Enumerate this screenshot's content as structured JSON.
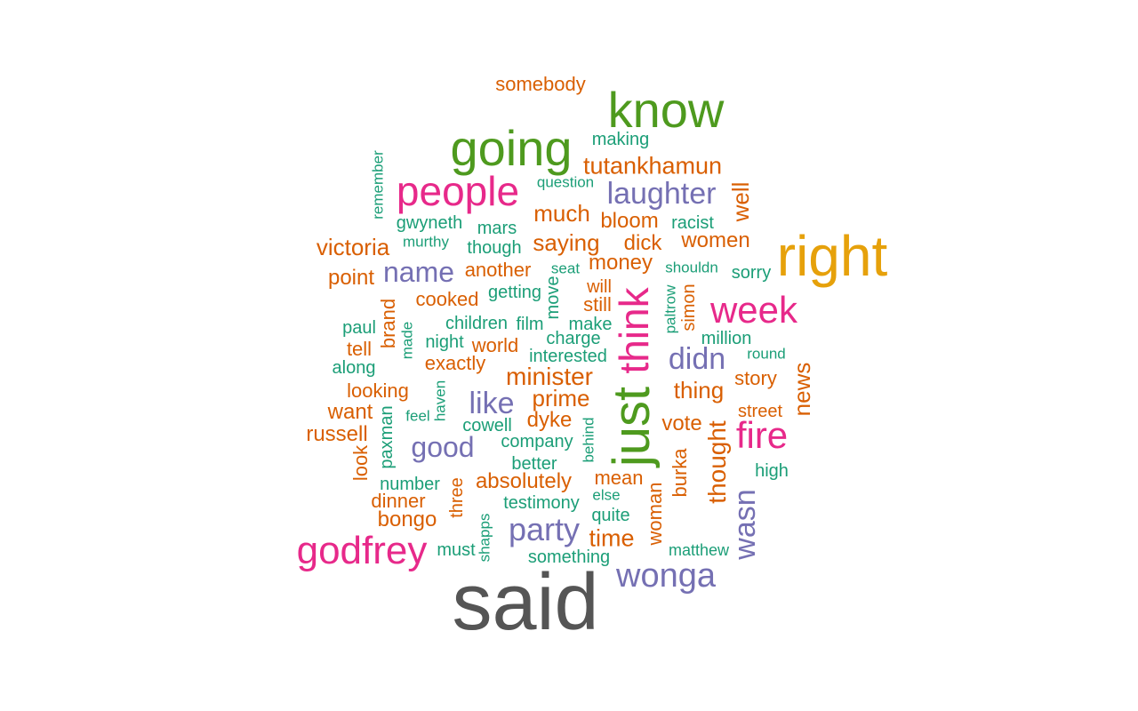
{
  "palette": {
    "gray": "#555555",
    "orange": "#d95f02",
    "green": "#1b9e77",
    "purple": "#7570b3",
    "magenta": "#e7298a",
    "lime": "#4e9a1e",
    "gold": "#e6a10b"
  },
  "words": [
    {
      "text": "said",
      "size": 90,
      "color": "gray"
    },
    {
      "text": "right",
      "size": 64,
      "color": "gold"
    },
    {
      "text": "just",
      "size": 58,
      "color": "lime"
    },
    {
      "text": "know",
      "size": 56,
      "color": "lime"
    },
    {
      "text": "going",
      "size": 56,
      "color": "lime"
    },
    {
      "text": "think",
      "size": 46,
      "color": "magenta"
    },
    {
      "text": "people",
      "size": 46,
      "color": "magenta"
    },
    {
      "text": "godfrey",
      "size": 44,
      "color": "magenta"
    },
    {
      "text": "week",
      "size": 42,
      "color": "magenta"
    },
    {
      "text": "fire",
      "size": 42,
      "color": "magenta"
    },
    {
      "text": "wonga",
      "size": 38,
      "color": "purple"
    },
    {
      "text": "party",
      "size": 36,
      "color": "purple"
    },
    {
      "text": "laughter",
      "size": 34,
      "color": "purple"
    },
    {
      "text": "didn",
      "size": 34,
      "color": "purple"
    },
    {
      "text": "like",
      "size": 34,
      "color": "purple"
    },
    {
      "text": "name",
      "size": 32,
      "color": "purple"
    },
    {
      "text": "good",
      "size": 32,
      "color": "purple"
    },
    {
      "text": "wasn",
      "size": 34,
      "color": "purple"
    },
    {
      "text": "minister",
      "size": 28,
      "color": "orange"
    },
    {
      "text": "thought",
      "size": 28,
      "color": "orange"
    },
    {
      "text": "tutankhamun",
      "size": 27,
      "color": "orange"
    },
    {
      "text": "time",
      "size": 27,
      "color": "orange"
    },
    {
      "text": "victoria",
      "size": 26,
      "color": "orange"
    },
    {
      "text": "saying",
      "size": 26,
      "color": "orange"
    },
    {
      "text": "much",
      "size": 26,
      "color": "orange"
    },
    {
      "text": "prime",
      "size": 26,
      "color": "orange"
    },
    {
      "text": "thing",
      "size": 26,
      "color": "orange"
    },
    {
      "text": "news",
      "size": 26,
      "color": "orange"
    },
    {
      "text": "well",
      "size": 26,
      "color": "orange"
    },
    {
      "text": "bloom",
      "size": 24,
      "color": "orange"
    },
    {
      "text": "dick",
      "size": 24,
      "color": "orange"
    },
    {
      "text": "women",
      "size": 24,
      "color": "orange"
    },
    {
      "text": "money",
      "size": 24,
      "color": "orange"
    },
    {
      "text": "dyke",
      "size": 24,
      "color": "orange"
    },
    {
      "text": "vote",
      "size": 24,
      "color": "orange"
    },
    {
      "text": "absolutely",
      "size": 24,
      "color": "orange"
    },
    {
      "text": "bongo",
      "size": 24,
      "color": "orange"
    },
    {
      "text": "want",
      "size": 24,
      "color": "orange"
    },
    {
      "text": "russell",
      "size": 24,
      "color": "orange"
    },
    {
      "text": "point",
      "size": 24,
      "color": "orange"
    },
    {
      "text": "somebody",
      "size": 22,
      "color": "orange"
    },
    {
      "text": "another",
      "size": 22,
      "color": "orange"
    },
    {
      "text": "cooked",
      "size": 22,
      "color": "orange"
    },
    {
      "text": "exactly",
      "size": 22,
      "color": "orange"
    },
    {
      "text": "world",
      "size": 22,
      "color": "orange"
    },
    {
      "text": "still",
      "size": 22,
      "color": "orange"
    },
    {
      "text": "will",
      "size": 20,
      "color": "orange"
    },
    {
      "text": "story",
      "size": 22,
      "color": "orange"
    },
    {
      "text": "street",
      "size": 20,
      "color": "orange"
    },
    {
      "text": "looking",
      "size": 22,
      "color": "orange"
    },
    {
      "text": "tell",
      "size": 22,
      "color": "orange"
    },
    {
      "text": "dinner",
      "size": 22,
      "color": "orange"
    },
    {
      "text": "mean",
      "size": 22,
      "color": "orange"
    },
    {
      "text": "brand",
      "size": 22,
      "color": "orange"
    },
    {
      "text": "look",
      "size": 22,
      "color": "orange"
    },
    {
      "text": "three",
      "size": 20,
      "color": "orange"
    },
    {
      "text": "burka",
      "size": 22,
      "color": "orange"
    },
    {
      "text": "woman",
      "size": 22,
      "color": "orange"
    },
    {
      "text": "simon",
      "size": 20,
      "color": "orange"
    },
    {
      "text": "making",
      "size": 20,
      "color": "green"
    },
    {
      "text": "question",
      "size": 17,
      "color": "green"
    },
    {
      "text": "remember",
      "size": 17,
      "color": "green"
    },
    {
      "text": "gwyneth",
      "size": 20,
      "color": "green"
    },
    {
      "text": "mars",
      "size": 20,
      "color": "green"
    },
    {
      "text": "racist",
      "size": 20,
      "color": "green"
    },
    {
      "text": "murthy",
      "size": 17,
      "color": "green"
    },
    {
      "text": "though",
      "size": 20,
      "color": "green"
    },
    {
      "text": "seat",
      "size": 17,
      "color": "green"
    },
    {
      "text": "shouldn",
      "size": 17,
      "color": "green"
    },
    {
      "text": "sorry",
      "size": 20,
      "color": "green"
    },
    {
      "text": "getting",
      "size": 20,
      "color": "green"
    },
    {
      "text": "paul",
      "size": 20,
      "color": "green"
    },
    {
      "text": "children",
      "size": 20,
      "color": "green"
    },
    {
      "text": "film",
      "size": 20,
      "color": "green"
    },
    {
      "text": "make",
      "size": 20,
      "color": "green"
    },
    {
      "text": "night",
      "size": 20,
      "color": "green"
    },
    {
      "text": "charge",
      "size": 20,
      "color": "green"
    },
    {
      "text": "million",
      "size": 20,
      "color": "green"
    },
    {
      "text": "round",
      "size": 17,
      "color": "green"
    },
    {
      "text": "along",
      "size": 20,
      "color": "green"
    },
    {
      "text": "interested",
      "size": 20,
      "color": "green"
    },
    {
      "text": "feel",
      "size": 17,
      "color": "green"
    },
    {
      "text": "cowell",
      "size": 20,
      "color": "green"
    },
    {
      "text": "company",
      "size": 20,
      "color": "green"
    },
    {
      "text": "better",
      "size": 20,
      "color": "green"
    },
    {
      "text": "high",
      "size": 20,
      "color": "green"
    },
    {
      "text": "number",
      "size": 20,
      "color": "green"
    },
    {
      "text": "testimony",
      "size": 20,
      "color": "green"
    },
    {
      "text": "else",
      "size": 17,
      "color": "green"
    },
    {
      "text": "quite",
      "size": 20,
      "color": "green"
    },
    {
      "text": "must",
      "size": 20,
      "color": "green"
    },
    {
      "text": "something",
      "size": 20,
      "color": "green"
    },
    {
      "text": "matthew",
      "size": 18,
      "color": "green"
    },
    {
      "text": "move",
      "size": 20,
      "color": "green"
    },
    {
      "text": "paltrow",
      "size": 17,
      "color": "green"
    },
    {
      "text": "made",
      "size": 17,
      "color": "green"
    },
    {
      "text": "haven",
      "size": 17,
      "color": "green"
    },
    {
      "text": "paxman",
      "size": 20,
      "color": "green"
    },
    {
      "text": "behind",
      "size": 17,
      "color": "green"
    },
    {
      "text": "shapps",
      "size": 17,
      "color": "green"
    }
  ]
}
